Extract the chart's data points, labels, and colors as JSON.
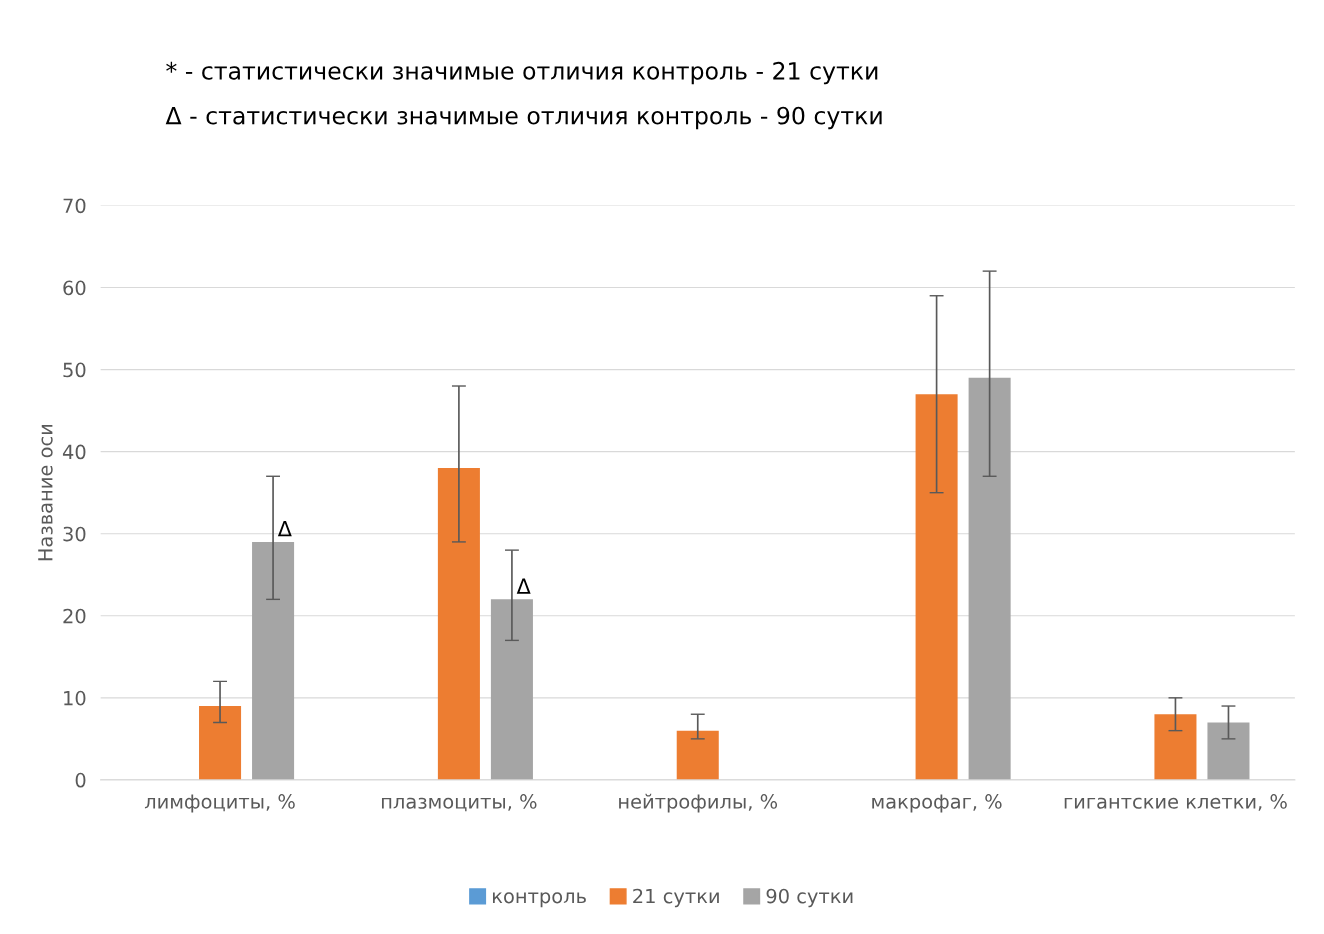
{
  "chart_data": {
    "type": "bar",
    "categories": [
      "лимфоциты, %",
      "плазмоциты, %",
      "нейтрофилы, %",
      "макрофаг, %",
      "гигантские клетки, %"
    ],
    "ylabel": "Название оси",
    "ylim": [
      0,
      70
    ],
    "yticks": [
      0,
      10,
      20,
      30,
      40,
      50,
      60,
      70
    ],
    "grid": "y",
    "legend": "bottom",
    "series": [
      {
        "name": "контроль",
        "color": "#5b9bd5",
        "values": [
          null,
          null,
          null,
          null,
          null
        ]
      },
      {
        "name": "21 сутки",
        "color": "#ed7d31",
        "values": [
          9,
          38,
          6,
          47,
          8
        ],
        "errors": [
          [
            7,
            12
          ],
          [
            29,
            48
          ],
          [
            5,
            8
          ],
          [
            35,
            59
          ],
          [
            6,
            10
          ]
        ]
      },
      {
        "name": "90 сутки",
        "color": "#a5a5a5",
        "values": [
          29,
          22,
          null,
          49,
          7
        ],
        "value_labels": [
          "Δ",
          "Δ",
          null,
          null,
          null
        ],
        "errors": [
          [
            22,
            37
          ],
          [
            17,
            28
          ],
          null,
          [
            37,
            62
          ],
          [
            5,
            9
          ]
        ]
      }
    ],
    "annotations": [
      "* - статистически значимые отличия контроль - 21 сутки",
      "Δ - статистически значимые отличия контроль - 90 сутки"
    ]
  }
}
